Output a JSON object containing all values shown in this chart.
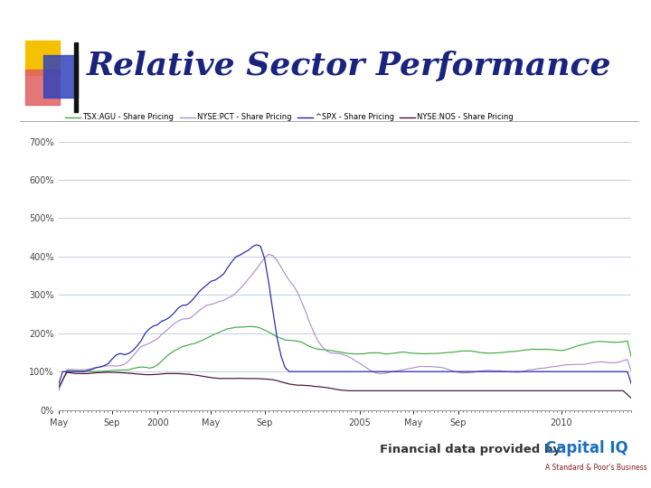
{
  "title": "Relative Sector Performance",
  "title_color": "#1a237e",
  "title_fontsize": 26,
  "bg_color": "#ffffff",
  "chart_bg": "#ffffff",
  "grid_color": "#c0cfe0",
  "legend_labels": [
    "TSX:AGU - Share Pricing",
    "NYSE:PCT - Share Pricing",
    "^SPX - Share Pricing",
    "NYSE:NOS - Share Pricing"
  ],
  "legend_colors": [
    "#44aa44",
    "#b090cc",
    "#2222aa",
    "#441133"
  ],
  "x_ticks": [
    "May",
    "Sep",
    "2000",
    "May",
    "Sep",
    "2005",
    "May",
    "Sep",
    "2010"
  ],
  "y_ticks": [
    "0%",
    "100%",
    "200%",
    "300%",
    "400%",
    "500%",
    "600%",
    "700%"
  ],
  "y_min": 0,
  "y_max": 700,
  "footer_text": "Financial data provided by",
  "footer_color": "#333333",
  "capital_iq_color": "#1a6fbd",
  "spb_color": "#8b1a1a",
  "logo_yellow": "#f5c000",
  "logo_red": "#e06060",
  "logo_blue": "#3344bb",
  "logo_black": "#111111"
}
